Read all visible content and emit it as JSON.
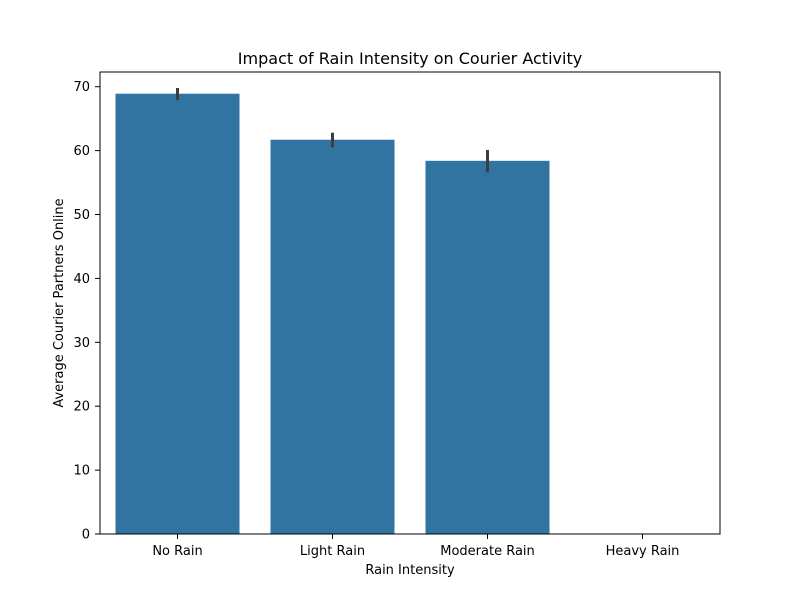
{
  "chart_data": {
    "type": "bar",
    "title": "Impact of Rain Intensity on Courier Activity",
    "xlabel": "Rain Intensity",
    "ylabel": "Average Courier Partners Online",
    "categories": [
      "No Rain",
      "Light Rain",
      "Moderate Rain",
      "Heavy Rain"
    ],
    "values": [
      68.9,
      61.7,
      58.4,
      null
    ],
    "error_bars": [
      {
        "low": 67.9,
        "high": 69.8
      },
      {
        "low": 60.5,
        "high": 62.8
      },
      {
        "low": 56.6,
        "high": 60.1
      },
      null
    ],
    "ylim": [
      0,
      72.3
    ],
    "yticks": [
      0,
      10,
      20,
      30,
      40,
      50,
      60,
      70
    ],
    "bar_color": "#3274a1",
    "errorbar_color": "#3d3d3d",
    "grid": false,
    "legend": "none"
  }
}
